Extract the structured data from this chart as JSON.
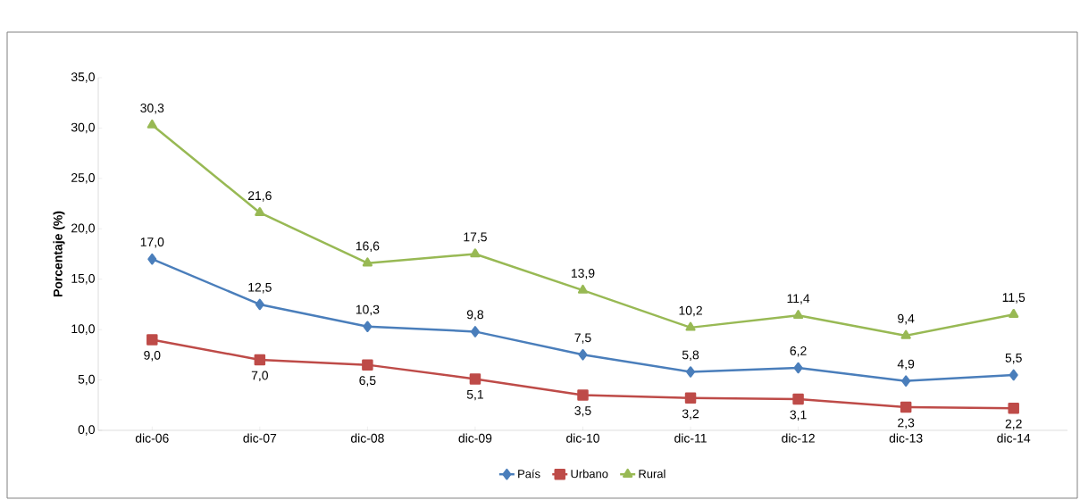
{
  "chart_data": {
    "type": "line",
    "ylabel": "Porcentaje  (%)",
    "categories": [
      "dic-06",
      "dic-07",
      "dic-08",
      "dic-09",
      "dic-10",
      "dic-11",
      "dic-12",
      "dic-13",
      "dic-14"
    ],
    "ylim": [
      0,
      35
    ],
    "yticks": [
      {
        "value": 0,
        "label": "0,0"
      },
      {
        "value": 5,
        "label": "5,0"
      },
      {
        "value": 10,
        "label": "10,0"
      },
      {
        "value": 15,
        "label": "15,0"
      },
      {
        "value": 20,
        "label": "20,0"
      },
      {
        "value": 25,
        "label": "25,0"
      },
      {
        "value": 30,
        "label": "30,0"
      },
      {
        "value": 35,
        "label": "35,0"
      }
    ],
    "legend": "bottom",
    "line_style": "solid",
    "series": [
      {
        "name": "País",
        "color": "#4a7ebb",
        "marker": "diamond",
        "values": [
          17.0,
          12.5,
          10.3,
          9.8,
          7.5,
          5.8,
          6.2,
          4.9,
          5.5
        ],
        "value_labels": [
          "17,0",
          "12,5",
          "10,3",
          "9,8",
          "7,5",
          "5,8",
          "6,2",
          "4,9",
          "5,5"
        ]
      },
      {
        "name": "Urbano",
        "color": "#be4b48",
        "marker": "square",
        "values": [
          9.0,
          7.0,
          6.5,
          5.1,
          3.5,
          3.2,
          3.1,
          2.3,
          2.2
        ],
        "value_labels": [
          "9,0",
          "7,0",
          "6,5",
          "5,1",
          "3,5",
          "3,2",
          "3,1",
          "2,3",
          "2,2"
        ]
      },
      {
        "name": "Rural",
        "color": "#98b954",
        "marker": "triangle",
        "values": [
          30.3,
          21.6,
          16.6,
          17.5,
          13.9,
          10.2,
          11.4,
          9.4,
          11.5
        ],
        "value_labels": [
          "30,3",
          "21,6",
          "16,6",
          "17,5",
          "13,9",
          "10,2",
          "11,4",
          "9,4",
          "11,5"
        ]
      }
    ]
  }
}
